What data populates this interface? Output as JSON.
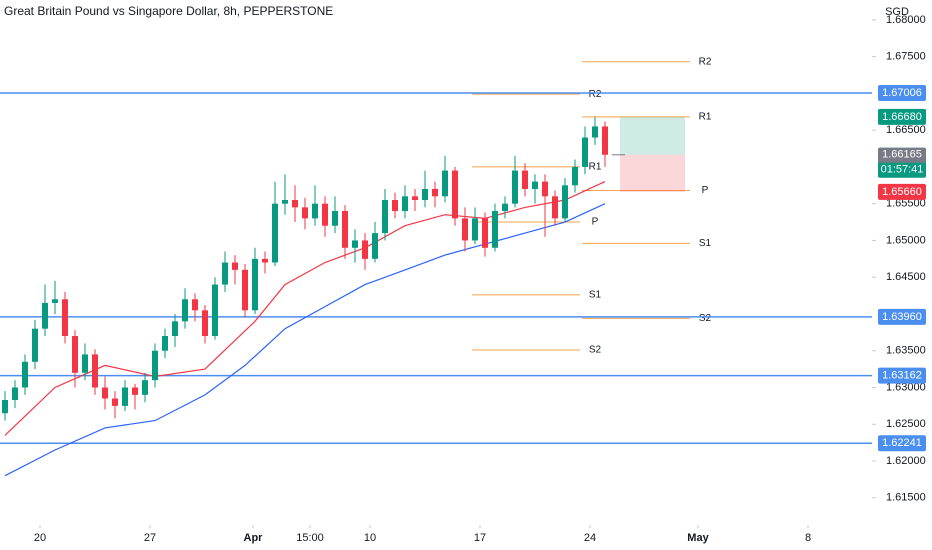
{
  "chart_data": {
    "type": "candlestick",
    "title": "Great Britain Pound vs Singapore Dollar, 8h, PEPPERSTONE",
    "currency": "SGD",
    "ylim": [
      1.6113,
      1.6827
    ],
    "yticks": [
      {
        "value": 1.615,
        "label": "1.61500"
      },
      {
        "value": 1.62,
        "label": "1.62000"
      },
      {
        "value": 1.625,
        "label": "1.62500"
      },
      {
        "value": 1.63,
        "label": "1.63000"
      },
      {
        "value": 1.635,
        "label": "1.63500"
      },
      {
        "value": 1.645,
        "label": "1.64500"
      },
      {
        "value": 1.65,
        "label": "1.65000"
      },
      {
        "value": 1.655,
        "label": "1.65500"
      },
      {
        "value": 1.665,
        "label": "1.66500"
      },
      {
        "value": 1.675,
        "label": "1.67500"
      },
      {
        "value": 1.68,
        "label": "1.68000"
      }
    ],
    "xticks": [
      {
        "value": 3.5,
        "label": "20"
      },
      {
        "value": 14.5,
        "label": "27"
      },
      {
        "value": 24.8,
        "label": "Apr"
      },
      {
        "value": 30.5,
        "label": "15:00"
      },
      {
        "value": 36.5,
        "label": "10"
      },
      {
        "value": 47.5,
        "label": "17"
      },
      {
        "value": 58.5,
        "label": "24"
      },
      {
        "value": 69.3,
        "label": "May"
      },
      {
        "value": 80.3,
        "label": "8"
      }
    ],
    "up_color": "#089981",
    "down_color": "#f23645",
    "open": [
      1.6265,
      1.6283,
      1.63,
      1.6335,
      1.638,
      1.6415,
      1.642,
      1.637,
      1.632,
      1.6345,
      1.63,
      1.6285,
      1.6275,
      1.63,
      1.629,
      1.631,
      1.635,
      1.637,
      1.639,
      1.642,
      1.6405,
      1.637,
      1.644,
      1.647,
      1.646,
      1.6405,
      1.6475,
      1.647,
      1.655,
      1.6555,
      1.6545,
      1.653,
      1.655,
      1.652,
      1.654,
      1.649,
      1.65,
      1.6475,
      1.651,
      1.6555,
      1.654,
      1.656,
      1.6555,
      1.657,
      1.656,
      1.6595,
      1.653,
      1.65,
      1.653,
      1.649,
      1.654,
      1.655,
      1.6595,
      1.657,
      1.658,
      1.656,
      1.653,
      1.6575,
      1.66,
      1.664,
      1.6655
    ],
    "high": [
      1.6295,
      1.631,
      1.6345,
      1.6392,
      1.644,
      1.6445,
      1.643,
      1.6378,
      1.636,
      1.6352,
      1.6315,
      1.6295,
      1.631,
      1.6305,
      1.632,
      1.636,
      1.638,
      1.64,
      1.6435,
      1.6428,
      1.6412,
      1.645,
      1.6485,
      1.648,
      1.6468,
      1.649,
      1.6485,
      1.658,
      1.659,
      1.6575,
      1.6558,
      1.6575,
      1.656,
      1.656,
      1.6548,
      1.6515,
      1.651,
      1.6525,
      1.657,
      1.6565,
      1.6575,
      1.657,
      1.6595,
      1.658,
      1.6615,
      1.66,
      1.6545,
      1.6545,
      1.6538,
      1.655,
      1.656,
      1.6615,
      1.6605,
      1.659,
      1.659,
      1.6568,
      1.6585,
      1.661,
      1.6655,
      1.6668,
      1.6662
    ],
    "low": [
      1.6255,
      1.6272,
      1.629,
      1.6325,
      1.637,
      1.64,
      1.636,
      1.63,
      1.631,
      1.629,
      1.627,
      1.6258,
      1.6268,
      1.627,
      1.628,
      1.63,
      1.634,
      1.6355,
      1.638,
      1.639,
      1.636,
      1.6365,
      1.643,
      1.644,
      1.6395,
      1.64,
      1.6455,
      1.6465,
      1.6535,
      1.6525,
      1.6515,
      1.652,
      1.6505,
      1.651,
      1.6475,
      1.647,
      1.646,
      1.647,
      1.65,
      1.653,
      1.653,
      1.654,
      1.6545,
      1.6545,
      1.6552,
      1.652,
      1.6485,
      1.6495,
      1.6478,
      1.6485,
      1.653,
      1.6545,
      1.656,
      1.655,
      1.6505,
      1.652,
      1.6525,
      1.6565,
      1.659,
      1.663,
      1.66
    ],
    "close": [
      1.6283,
      1.63,
      1.6335,
      1.638,
      1.6415,
      1.642,
      1.637,
      1.632,
      1.6345,
      1.63,
      1.6285,
      1.6275,
      1.63,
      1.629,
      1.631,
      1.635,
      1.637,
      1.639,
      1.642,
      1.6405,
      1.637,
      1.644,
      1.647,
      1.646,
      1.6405,
      1.6475,
      1.647,
      1.655,
      1.6555,
      1.6545,
      1.653,
      1.655,
      1.652,
      1.654,
      1.649,
      1.65,
      1.6475,
      1.651,
      1.6555,
      1.654,
      1.656,
      1.6555,
      1.657,
      1.656,
      1.6595,
      1.653,
      1.65,
      1.653,
      1.649,
      1.654,
      1.655,
      1.6595,
      1.657,
      1.658,
      1.656,
      1.653,
      1.6575,
      1.66,
      1.664,
      1.6655,
      1.66165
    ],
    "ma": [
      {
        "color": "#f23645",
        "index": [
          0,
          5,
          10,
          15,
          20,
          25,
          28,
          32,
          36,
          40,
          44,
          48,
          52,
          56,
          60
        ],
        "values": [
          1.6235,
          1.63,
          1.633,
          1.6315,
          1.6325,
          1.639,
          1.644,
          1.647,
          1.649,
          1.652,
          1.6535,
          1.653,
          1.6545,
          1.6555,
          1.658
        ]
      },
      {
        "color": "#2962ff",
        "index": [
          0,
          5,
          10,
          15,
          20,
          24,
          28,
          32,
          36,
          40,
          44,
          48,
          52,
          56,
          60
        ],
        "values": [
          1.618,
          1.6215,
          1.6245,
          1.6255,
          1.629,
          1.633,
          1.638,
          1.641,
          1.644,
          1.646,
          1.648,
          1.6495,
          1.651,
          1.6525,
          1.655
        ]
      }
    ],
    "hlines": [
      {
        "value": 1.67006,
        "label": "1.67006"
      },
      {
        "value": 1.6396,
        "label": "1.63960"
      },
      {
        "value": 1.63162,
        "label": "1.63162"
      },
      {
        "value": 1.62241,
        "label": "1.62241"
      }
    ],
    "hline_color": "#4a8ff0",
    "pivot_color": "#f7a14a",
    "pivots": [
      {
        "levels": [
          {
            "name": "R2",
            "value": 1.6699
          },
          {
            "name": "R1",
            "value": 1.66
          },
          {
            "name": "P",
            "value": 1.6525
          },
          {
            "name": "S1",
            "value": 1.6426
          },
          {
            "name": "S2",
            "value": 1.6351
          }
        ]
      },
      {
        "levels": [
          {
            "name": "R2",
            "value": 1.6743
          },
          {
            "name": "R1",
            "value": 1.6668
          },
          {
            "name": "P",
            "value": 1.6568
          },
          {
            "name": "S1",
            "value": 1.6496
          },
          {
            "name": "S2",
            "value": 1.6394
          }
        ]
      }
    ],
    "position": {
      "target": {
        "value": 1.6668,
        "label": "1.66680"
      },
      "entry": {
        "value": 1.66165,
        "label": "1.66165"
      },
      "stop": {
        "value": 1.6566,
        "label": "1.65660"
      },
      "countdown": "01:57:41"
    }
  }
}
